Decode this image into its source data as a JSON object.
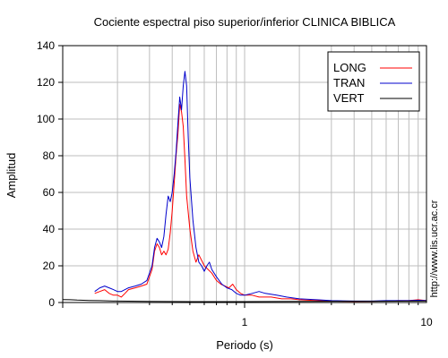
{
  "chart_data": {
    "type": "line",
    "title": "Cociente espectral piso superior/inferior  CLINICA BIBLICA",
    "xlabel": "Periodo (s)",
    "ylabel": "Amplitud",
    "x_scale": "log",
    "xlim": [
      0.1,
      10
    ],
    "ylim": [
      0,
      140
    ],
    "y_ticks": [
      0,
      20,
      40,
      60,
      80,
      100,
      120,
      140
    ],
    "x_tick_labels": [
      {
        "value": 1,
        "label": "1"
      },
      {
        "value": 10,
        "label": "10"
      }
    ],
    "grid": true,
    "legend_position": "top-right",
    "side_text": "http://www.lis.ucr.ac.cr",
    "series": [
      {
        "name": "LONG",
        "color": "#ff0000",
        "points": [
          [
            0.15,
            5
          ],
          [
            0.16,
            6
          ],
          [
            0.17,
            7
          ],
          [
            0.18,
            5
          ],
          [
            0.19,
            4
          ],
          [
            0.2,
            4
          ],
          [
            0.21,
            3
          ],
          [
            0.22,
            5
          ],
          [
            0.23,
            7
          ],
          [
            0.25,
            8
          ],
          [
            0.27,
            9
          ],
          [
            0.29,
            10
          ],
          [
            0.31,
            18
          ],
          [
            0.32,
            28
          ],
          [
            0.33,
            32
          ],
          [
            0.34,
            30
          ],
          [
            0.35,
            26
          ],
          [
            0.36,
            28
          ],
          [
            0.37,
            26
          ],
          [
            0.38,
            29
          ],
          [
            0.39,
            38
          ],
          [
            0.4,
            50
          ],
          [
            0.41,
            65
          ],
          [
            0.42,
            80
          ],
          [
            0.43,
            92
          ],
          [
            0.44,
            108
          ],
          [
            0.45,
            104
          ],
          [
            0.46,
            96
          ],
          [
            0.47,
            78
          ],
          [
            0.48,
            58
          ],
          [
            0.5,
            40
          ],
          [
            0.52,
            28
          ],
          [
            0.54,
            22
          ],
          [
            0.56,
            26
          ],
          [
            0.58,
            23
          ],
          [
            0.6,
            20
          ],
          [
            0.63,
            18
          ],
          [
            0.66,
            16
          ],
          [
            0.7,
            12
          ],
          [
            0.74,
            10
          ],
          [
            0.78,
            9
          ],
          [
            0.82,
            8
          ],
          [
            0.86,
            10
          ],
          [
            0.9,
            7
          ],
          [
            0.95,
            5
          ],
          [
            1.0,
            4
          ],
          [
            1.1,
            4
          ],
          [
            1.2,
            3
          ],
          [
            1.4,
            3
          ],
          [
            1.6,
            2
          ],
          [
            1.8,
            2
          ],
          [
            2.0,
            1.5
          ],
          [
            2.5,
            1
          ],
          [
            3,
            0.8
          ],
          [
            4,
            0.6
          ],
          [
            5,
            0.7
          ],
          [
            6,
            0.8
          ],
          [
            7,
            1
          ],
          [
            8,
            1
          ],
          [
            9,
            1.5
          ],
          [
            10,
            1
          ]
        ]
      },
      {
        "name": "TRAN",
        "color": "#0000cc",
        "points": [
          [
            0.15,
            6
          ],
          [
            0.16,
            8
          ],
          [
            0.17,
            9
          ],
          [
            0.18,
            8
          ],
          [
            0.19,
            7
          ],
          [
            0.2,
            6
          ],
          [
            0.21,
            6
          ],
          [
            0.22,
            7
          ],
          [
            0.23,
            8
          ],
          [
            0.25,
            9
          ],
          [
            0.27,
            10
          ],
          [
            0.29,
            12
          ],
          [
            0.31,
            20
          ],
          [
            0.32,
            30
          ],
          [
            0.33,
            35
          ],
          [
            0.34,
            33
          ],
          [
            0.35,
            30
          ],
          [
            0.36,
            36
          ],
          [
            0.37,
            48
          ],
          [
            0.38,
            58
          ],
          [
            0.39,
            55
          ],
          [
            0.4,
            60
          ],
          [
            0.41,
            70
          ],
          [
            0.42,
            82
          ],
          [
            0.43,
            98
          ],
          [
            0.44,
            112
          ],
          [
            0.45,
            105
          ],
          [
            0.46,
            118
          ],
          [
            0.47,
            126
          ],
          [
            0.48,
            118
          ],
          [
            0.49,
            90
          ],
          [
            0.5,
            68
          ],
          [
            0.52,
            45
          ],
          [
            0.54,
            30
          ],
          [
            0.56,
            22
          ],
          [
            0.58,
            20
          ],
          [
            0.6,
            17
          ],
          [
            0.62,
            20
          ],
          [
            0.64,
            22
          ],
          [
            0.66,
            18
          ],
          [
            0.7,
            14
          ],
          [
            0.75,
            10
          ],
          [
            0.8,
            8
          ],
          [
            0.85,
            7
          ],
          [
            0.9,
            5
          ],
          [
            0.95,
            4
          ],
          [
            1.0,
            4
          ],
          [
            1.1,
            5
          ],
          [
            1.2,
            6
          ],
          [
            1.3,
            5
          ],
          [
            1.5,
            4
          ],
          [
            1.7,
            3
          ],
          [
            2.0,
            2
          ],
          [
            2.5,
            1.5
          ],
          [
            3,
            1
          ],
          [
            4,
            0.8
          ],
          [
            5,
            0.8
          ],
          [
            6,
            1
          ],
          [
            7,
            1
          ],
          [
            8,
            1
          ],
          [
            9,
            1.2
          ],
          [
            10,
            1
          ]
        ]
      },
      {
        "name": "VERT",
        "color": "#000000",
        "points": [
          [
            0.1,
            1.6
          ],
          [
            0.11,
            1.5
          ],
          [
            0.12,
            1.3
          ],
          [
            0.14,
            1.1
          ],
          [
            0.16,
            1
          ],
          [
            0.2,
            0.8
          ],
          [
            0.3,
            0.6
          ],
          [
            0.5,
            0.5
          ],
          [
            1,
            0.5
          ],
          [
            2,
            0.6
          ],
          [
            5,
            0.7
          ],
          [
            10,
            0.8
          ]
        ]
      }
    ]
  }
}
